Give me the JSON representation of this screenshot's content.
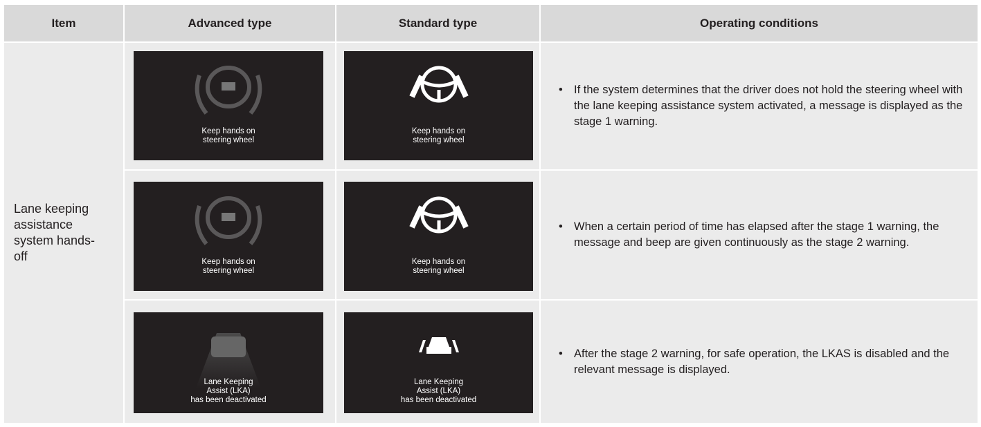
{
  "table": {
    "header": [
      "Item",
      "Advanced type",
      "Standard type",
      "Operating conditions"
    ],
    "item": "Lane keeping assistance system hands-off",
    "rows": [
      {
        "advanced": [
          "Keep hands on",
          "steering wheel"
        ],
        "standard": [
          "Keep hands on",
          "steering wheel"
        ],
        "condition": "If the system determines that the driver does not hold the steering wheel with the lane keeping assistance system activated, a message is displayed as the stage 1 warning."
      },
      {
        "advanced": [
          "Keep hands on",
          "steering wheel"
        ],
        "standard": [
          "Keep hands on",
          "steering wheel"
        ],
        "condition": "When a certain period of time has elapsed after the stage 1 warning, the message and beep are given continuously as the stage 2 warning."
      },
      {
        "advanced": [
          "Lane Keeping",
          "Assist (LKA)",
          "has been deactivated"
        ],
        "standard": [
          "Lane Keeping",
          "Assist (LKA)",
          "has been deactivated"
        ],
        "condition": "After the stage 2 warning, for safe operation, the LKAS is disabled and the relevant message is displayed."
      }
    ]
  }
}
